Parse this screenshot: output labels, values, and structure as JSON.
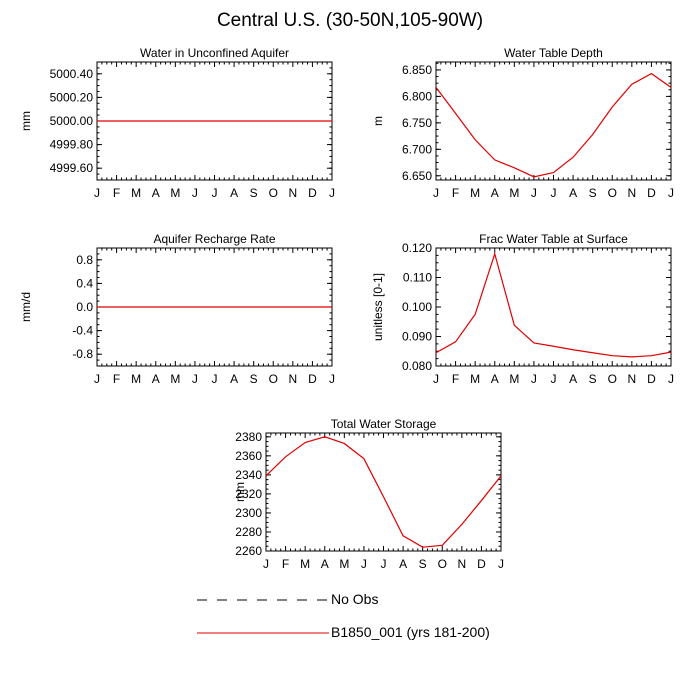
{
  "page": {
    "title": "Central U.S. (30-50N,105-90W)"
  },
  "legend": [
    {
      "name": "No Obs",
      "color": "#000000",
      "style": "dashed"
    },
    {
      "name": "B1850_001 (yrs 181-200)",
      "color": "#e00000",
      "style": "solid"
    }
  ],
  "chart_data": [
    {
      "type": "line",
      "title": "Water in Unconfined Aquifer",
      "xlabel": "",
      "ylabel": "mm",
      "x": [
        "J",
        "F",
        "M",
        "A",
        "M",
        "J",
        "J",
        "A",
        "S",
        "O",
        "N",
        "D",
        "J"
      ],
      "ylim": [
        4999.5,
        5000.5
      ],
      "yticks": [
        4999.6,
        4999.8,
        5000.0,
        5000.2,
        5000.4
      ],
      "yticklabels": [
        "4999.60",
        "4999.80",
        "5000.00",
        "5000.20",
        "5000.40"
      ],
      "series": [
        {
          "color": "#e00000",
          "values": [
            5000,
            5000,
            5000,
            5000,
            5000,
            5000,
            5000,
            5000,
            5000,
            5000,
            5000,
            5000,
            5000
          ]
        }
      ]
    },
    {
      "type": "line",
      "title": "Water Table Depth",
      "xlabel": "",
      "ylabel": "m",
      "x": [
        "J",
        "F",
        "M",
        "A",
        "M",
        "J",
        "J",
        "A",
        "S",
        "O",
        "N",
        "D",
        "J"
      ],
      "ylim": [
        6.642,
        6.865
      ],
      "yticks": [
        6.65,
        6.7,
        6.75,
        6.8,
        6.85
      ],
      "yticklabels": [
        "6.650",
        "6.700",
        "6.750",
        "6.800",
        "6.850"
      ],
      "series": [
        {
          "color": "#e00000",
          "values": [
            6.817,
            6.768,
            6.718,
            6.68,
            6.665,
            6.648,
            6.656,
            6.685,
            6.728,
            6.78,
            6.823,
            6.843,
            6.817
          ]
        }
      ]
    },
    {
      "type": "line",
      "title": "Aquifer Recharge Rate",
      "xlabel": "",
      "ylabel": "mm/d",
      "x": [
        "J",
        "F",
        "M",
        "A",
        "M",
        "J",
        "J",
        "A",
        "S",
        "O",
        "N",
        "D",
        "J"
      ],
      "ylim": [
        -1.0,
        1.0
      ],
      "yticks": [
        -0.8,
        -0.4,
        0.0,
        0.4,
        0.8
      ],
      "yticklabels": [
        "-0.8",
        "-0.4",
        "0.0",
        "0.4",
        "0.8"
      ],
      "series": [
        {
          "color": "#e00000",
          "values": [
            0,
            0,
            0,
            0,
            0,
            0,
            0,
            0,
            0,
            0,
            0,
            0,
            0
          ]
        }
      ]
    },
    {
      "type": "line",
      "title": "Frac Water Table at Surface",
      "xlabel": "",
      "ylabel": "unitless [0-1]",
      "x": [
        "J",
        "F",
        "M",
        "A",
        "M",
        "J",
        "J",
        "A",
        "S",
        "O",
        "N",
        "D",
        "J"
      ],
      "ylim": [
        0.08,
        0.12
      ],
      "yticks": [
        0.08,
        0.09,
        0.1,
        0.11,
        0.12
      ],
      "yticklabels": [
        "0.080",
        "0.090",
        "0.100",
        "0.110",
        "0.120"
      ],
      "series": [
        {
          "color": "#e00000",
          "values": [
            0.0845,
            0.0882,
            0.0975,
            0.118,
            0.0938,
            0.0878,
            0.0867,
            0.0855,
            0.0845,
            0.0835,
            0.0831,
            0.0835,
            0.0847
          ]
        }
      ]
    },
    {
      "type": "line",
      "title": "Total Water Storage",
      "xlabel": "",
      "ylabel": "mm",
      "x": [
        "J",
        "F",
        "M",
        "A",
        "M",
        "J",
        "J",
        "A",
        "S",
        "O",
        "N",
        "D",
        "J"
      ],
      "ylim": [
        2260,
        2384
      ],
      "yticks": [
        2260,
        2280,
        2300,
        2320,
        2340,
        2360,
        2380
      ],
      "yticklabels": [
        "2260",
        "2280",
        "2300",
        "2320",
        "2340",
        "2360",
        "2380"
      ],
      "series": [
        {
          "color": "#e00000",
          "values": [
            2339,
            2359,
            2374,
            2380,
            2373,
            2357,
            2317,
            2276,
            2264,
            2266,
            2288,
            2313,
            2339
          ]
        }
      ]
    }
  ]
}
